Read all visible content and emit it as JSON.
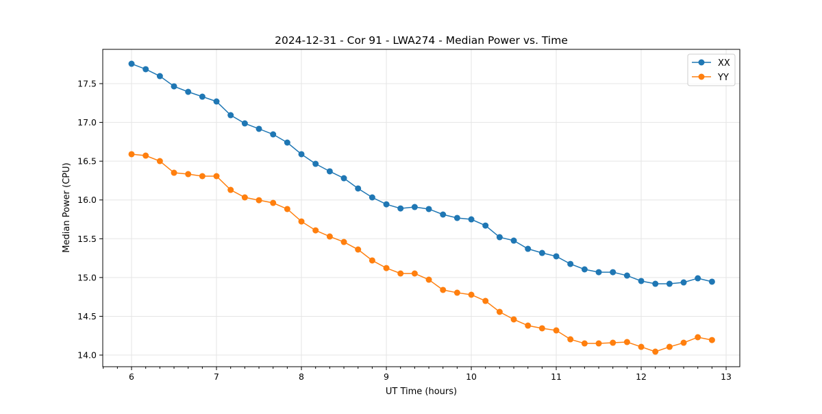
{
  "chart_data": {
    "type": "line",
    "title": "2024-12-31 - Cor 91 - LWA274 - Median Power vs. Time",
    "xlabel": "UT Time (hours)",
    "ylabel": "Median Power (CPU)",
    "xlim": [
      5.661,
      13.161
    ],
    "ylim": [
      13.85,
      17.942
    ],
    "xticks": [
      6,
      7,
      8,
      9,
      10,
      11,
      12,
      13
    ],
    "xtick_labels": [
      "6",
      "7",
      "8",
      "9",
      "10",
      "11",
      "12",
      "13"
    ],
    "yticks": [
      14.0,
      14.5,
      15.0,
      15.5,
      16.0,
      16.5,
      17.0,
      17.5
    ],
    "ytick_labels": [
      "14.0",
      "14.5",
      "15.0",
      "15.5",
      "16.0",
      "16.5",
      "17.0",
      "17.5"
    ],
    "grid": true,
    "legend_position": "top-right",
    "x_start": 6,
    "x_step_hours": 0.16667,
    "series": [
      {
        "name": "XX",
        "color": "#1f77b4",
        "values": [
          17.756,
          17.686,
          17.597,
          17.465,
          17.394,
          17.332,
          17.27,
          17.093,
          16.987,
          16.917,
          16.846,
          16.74,
          16.59,
          16.466,
          16.369,
          16.28,
          16.148,
          16.033,
          15.944,
          15.891,
          15.909,
          15.883,
          15.812,
          15.768,
          15.75,
          15.67,
          15.52,
          15.476,
          15.37,
          15.317,
          15.273,
          15.175,
          15.105,
          15.069,
          15.069,
          15.025,
          14.955,
          14.919,
          14.919,
          14.937,
          14.99,
          14.946
        ]
      },
      {
        "name": "YY",
        "color": "#ff7f0e",
        "values": [
          16.59,
          16.572,
          16.501,
          16.351,
          16.333,
          16.307,
          16.307,
          16.13,
          16.033,
          15.997,
          15.962,
          15.883,
          15.723,
          15.608,
          15.529,
          15.458,
          15.361,
          15.22,
          15.122,
          15.052,
          15.052,
          14.972,
          14.84,
          14.804,
          14.778,
          14.698,
          14.557,
          14.46,
          14.38,
          14.345,
          14.318,
          14.203,
          14.15,
          14.15,
          14.159,
          14.168,
          14.106,
          14.044,
          14.106,
          14.159,
          14.23,
          14.194
        ]
      }
    ]
  }
}
